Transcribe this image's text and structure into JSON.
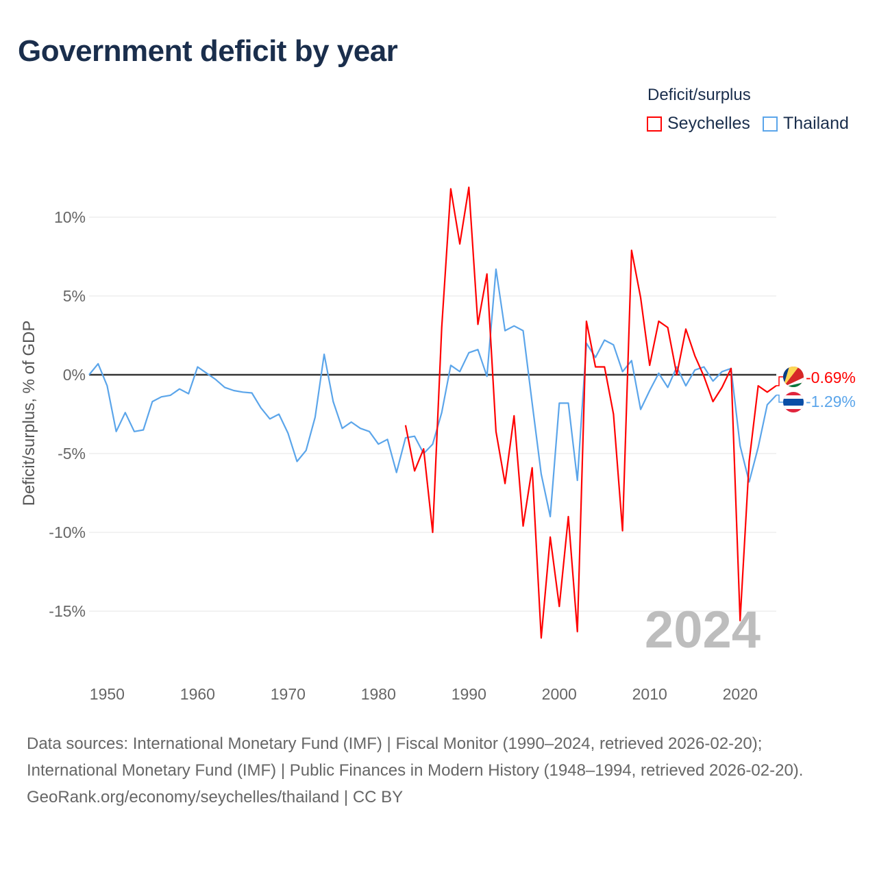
{
  "title": "Government deficit by year",
  "legend": {
    "title": "Deficit/surplus",
    "items": [
      "Seychelles",
      "Thailand"
    ]
  },
  "year_watermark": "2024",
  "end_labels": {
    "seychelles": "-0.69%",
    "thailand": "-1.29%"
  },
  "footer": {
    "sources": "Data sources: International Monetary Fund (IMF) | Fiscal Monitor (1990–2024, retrieved 2026-02-20); International Monetary Fund (IMF) | Public Finances in Modern History (1948–1994, retrieved 2026-02-20).",
    "credit": "GeoRank.org/economy/seychelles/thailand | CC BY"
  },
  "chart_data": {
    "type": "line",
    "title": "Government deficit by year",
    "xlabel": "",
    "ylabel": "Deficit/surplus, % of GDP",
    "xlim": [
      1948,
      2024
    ],
    "ylim": [
      -18,
      13
    ],
    "grid": true,
    "legend_position": "top-right",
    "x_ticks": [
      1950,
      1960,
      1970,
      1980,
      1990,
      2000,
      2010,
      2020
    ],
    "x_tick_labels": [
      "1950",
      "1960",
      "1970",
      "1980",
      "1990",
      "2000",
      "2010",
      "2020"
    ],
    "y_ticks": [
      10,
      5,
      0,
      -5,
      -10,
      -15
    ],
    "y_tick_labels": [
      "10%",
      "5%",
      "0%",
      "-5%",
      "-10%",
      "-15%"
    ],
    "series": [
      {
        "name": "Seychelles",
        "color": "#ff0000",
        "start_year": 1983,
        "values": [
          -3.2,
          -6.1,
          -4.7,
          -10.0,
          3.0,
          11.8,
          8.3,
          11.9,
          3.2,
          6.4,
          -3.6,
          -6.9,
          -2.6,
          -9.6,
          -5.9,
          -16.7,
          -10.3,
          -14.7,
          -9.0,
          -16.3,
          3.4,
          0.5,
          0.5,
          -2.5,
          -9.9,
          7.9,
          4.9,
          0.6,
          3.4,
          3.0,
          0.0,
          2.9,
          1.2,
          -0.1,
          -1.7,
          -0.8,
          0.4,
          -15.6,
          -5.5,
          -0.7,
          -1.1,
          -0.69
        ]
      },
      {
        "name": "Thailand",
        "color": "#5ba5ea",
        "start_year": 1948,
        "values": [
          0.0,
          0.7,
          -0.7,
          -3.6,
          -2.4,
          -3.6,
          -3.5,
          -1.7,
          -1.4,
          -1.3,
          -0.9,
          -1.2,
          0.5,
          0.1,
          -0.3,
          -0.8,
          -1.0,
          -1.1,
          -1.15,
          -2.1,
          -2.8,
          -2.5,
          -3.7,
          -5.5,
          -4.8,
          -2.7,
          1.3,
          -1.7,
          -3.4,
          -3.0,
          -3.4,
          -3.6,
          -4.4,
          -4.1,
          -6.2,
          -4.0,
          -3.9,
          -5.0,
          -4.4,
          -2.4,
          0.6,
          0.2,
          1.4,
          1.6,
          -0.1,
          6.7,
          2.8,
          3.1,
          2.8,
          -1.8,
          -6.3,
          -9.0,
          -1.8,
          -1.8,
          -6.7,
          2.0,
          1.1,
          2.2,
          1.9,
          0.2,
          0.9,
          -2.2,
          -1.0,
          0.1,
          -0.8,
          0.5,
          -0.7,
          0.3,
          0.5,
          -0.4,
          0.2,
          0.4,
          -4.5,
          -6.8,
          -4.6,
          -1.9,
          -1.29
        ]
      }
    ]
  }
}
